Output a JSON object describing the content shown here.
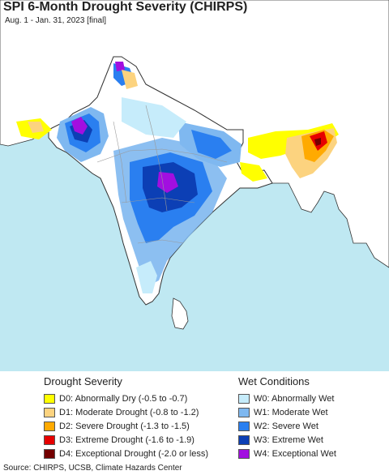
{
  "title": "SPI 6-Month Drought Severity (CHIRPS)",
  "subtitle": "Aug. 1 - Jan. 31, 2023 [final]",
  "colors": {
    "ocean": "#bfe8f2",
    "land": "#ffffff",
    "neighbor_land": "#ffffff",
    "borders": "#333333",
    "state_lines": "#999999"
  },
  "legend": {
    "drought_heading": "Drought Severity",
    "drought_items": [
      {
        "label": "D0: Abnormally Dry (-0.5 to -0.7)",
        "color": "#ffff00"
      },
      {
        "label": "D1: Moderate Drought (-0.8 to -1.2)",
        "color": "#fcd37f"
      },
      {
        "label": "D2: Severe Drought (-1.3 to -1.5)",
        "color": "#ffaa00"
      },
      {
        "label": "D3: Extreme Drought (-1.6 to -1.9)",
        "color": "#e60000"
      },
      {
        "label": "D4: Exceptional Drought (-2.0 or less)",
        "color": "#730000"
      }
    ],
    "wet_heading": "Wet Conditions",
    "wet_items": [
      {
        "label": "W0: Abnormally Wet",
        "color": "#c6ecfb"
      },
      {
        "label": "W1: Moderate Wet",
        "color": "#7fb8f0"
      },
      {
        "label": "W2: Severe Wet",
        "color": "#2a7ff0"
      },
      {
        "label": "W3: Extreme Wet",
        "color": "#0c3fb5"
      },
      {
        "label": "W4: Exceptional Wet",
        "color": "#a20fe0"
      }
    ]
  },
  "source": "Source: CHIRPS, UCSB, Climate Hazards Center"
}
